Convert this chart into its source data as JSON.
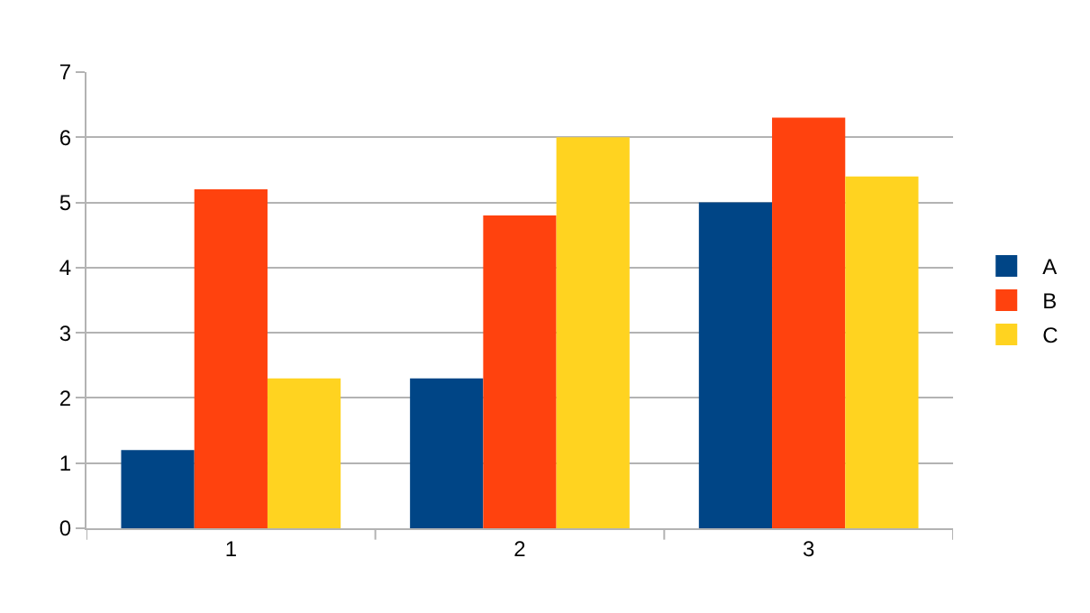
{
  "chart_data": {
    "type": "bar",
    "categories": [
      "1",
      "2",
      "3"
    ],
    "series": [
      {
        "name": "A",
        "color": "#004586",
        "values": [
          1.2,
          2.3,
          5.0
        ]
      },
      {
        "name": "B",
        "color": "#ff420e",
        "values": [
          5.2,
          4.8,
          6.3
        ]
      },
      {
        "name": "C",
        "color": "#ffd320",
        "values": [
          2.3,
          6.0,
          5.4
        ]
      }
    ],
    "ylim": [
      0,
      7
    ],
    "yticks": [
      0,
      1,
      2,
      3,
      4,
      5,
      6,
      7
    ],
    "grid": "y",
    "legend": "right"
  }
}
